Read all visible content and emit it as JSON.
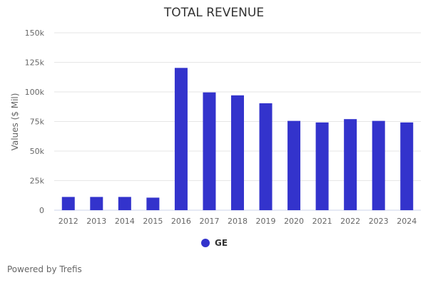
{
  "chart_data": {
    "type": "bar",
    "title": "TOTAL REVENUE",
    "xlabel": "",
    "ylabel": "Values ($ Mil)",
    "ylim": [
      0,
      150000
    ],
    "yticks": [
      0,
      25000,
      50000,
      75000,
      100000,
      125000,
      150000
    ],
    "ytick_labels": [
      "0",
      "25k",
      "50k",
      "75k",
      "100k",
      "125k",
      "150k"
    ],
    "grid": true,
    "legend_position": "bottom-center",
    "categories": [
      "2012",
      "2013",
      "2014",
      "2015",
      "2016",
      "2017",
      "2018",
      "2019",
      "2020",
      "2021",
      "2022",
      "2023",
      "2024"
    ],
    "series": [
      {
        "name": "GE",
        "color": "#3333cc",
        "values": [
          11200,
          11200,
          11200,
          10600,
          120300,
          99600,
          97100,
          90400,
          75500,
          74200,
          77000,
          75500,
          74200
        ]
      }
    ]
  },
  "footer": "Powered by Trefis"
}
